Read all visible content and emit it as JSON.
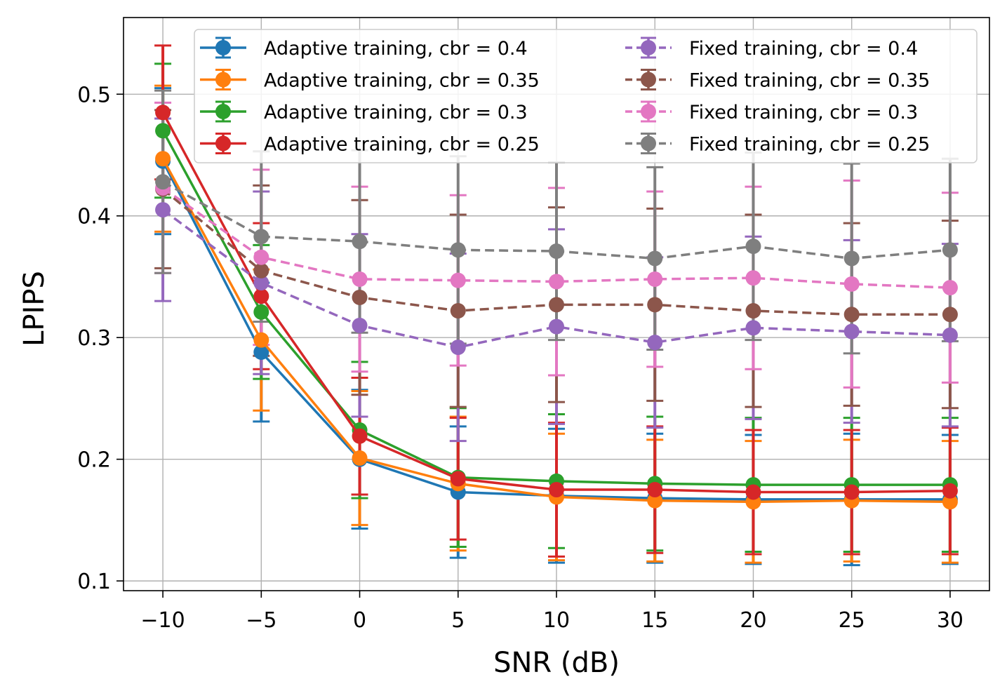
{
  "chart_data": {
    "type": "line",
    "title": "",
    "xlabel": "SNR (dB)",
    "ylabel": "LPIPS",
    "x": [
      -10,
      -5,
      0,
      5,
      10,
      15,
      20,
      25,
      30
    ],
    "x_tick_labels": [
      "−10",
      "−5",
      "0",
      "5",
      "10",
      "15",
      "20",
      "25",
      "30"
    ],
    "y_ticks": [
      0.1,
      0.2,
      0.3,
      0.4,
      0.5
    ],
    "y_tick_labels": [
      "0.1",
      "0.2",
      "0.3",
      "0.4",
      "0.5"
    ],
    "xlim": [
      -12,
      32
    ],
    "ylim": [
      0.092,
      0.563
    ],
    "grid": true,
    "legend_position": "top-right",
    "legend_columns": 2,
    "series": [
      {
        "name": "Adaptive training, cbr = 0.4",
        "color": "#1f77b4",
        "dashed": false,
        "values": [
          0.445,
          0.288,
          0.2,
          0.173,
          0.17,
          0.168,
          0.167,
          0.167,
          0.167
        ],
        "err": [
          0.06,
          0.057,
          0.057,
          0.054,
          0.055,
          0.053,
          0.053,
          0.054,
          0.053
        ]
      },
      {
        "name": "Adaptive training, cbr = 0.35",
        "color": "#ff7f0e",
        "dashed": false,
        "values": [
          0.447,
          0.298,
          0.201,
          0.18,
          0.169,
          0.166,
          0.165,
          0.166,
          0.165
        ],
        "err": [
          0.06,
          0.058,
          0.055,
          0.055,
          0.052,
          0.05,
          0.05,
          0.05,
          0.05
        ]
      },
      {
        "name": "Adaptive training, cbr = 0.3",
        "color": "#2ca02c",
        "dashed": false,
        "values": [
          0.47,
          0.321,
          0.224,
          0.185,
          0.182,
          0.18,
          0.179,
          0.179,
          0.179
        ],
        "err": [
          0.055,
          0.055,
          0.056,
          0.057,
          0.055,
          0.055,
          0.055,
          0.055,
          0.055
        ]
      },
      {
        "name": "Adaptive training, cbr = 0.25",
        "color": "#d62728",
        "dashed": false,
        "values": [
          0.485,
          0.334,
          0.219,
          0.184,
          0.175,
          0.175,
          0.173,
          0.173,
          0.174
        ],
        "err": [
          0.055,
          0.06,
          0.048,
          0.05,
          0.055,
          0.052,
          0.051,
          0.051,
          0.052
        ]
      },
      {
        "name": "Fixed training, cbr = 0.4",
        "color": "#9467bd",
        "dashed": true,
        "values": [
          0.405,
          0.345,
          0.31,
          0.292,
          0.309,
          0.296,
          0.308,
          0.305,
          0.302
        ],
        "err": [
          0.075,
          0.075,
          0.075,
          0.077,
          0.08,
          0.07,
          0.075,
          0.075,
          0.075
        ]
      },
      {
        "name": "Fixed training, cbr = 0.35",
        "color": "#8c564b",
        "dashed": true,
        "values": [
          0.422,
          0.355,
          0.333,
          0.322,
          0.327,
          0.327,
          0.322,
          0.319,
          0.319
        ],
        "err": [
          0.065,
          0.07,
          0.08,
          0.079,
          0.08,
          0.079,
          0.079,
          0.075,
          0.077
        ]
      },
      {
        "name": "Fixed training, cbr = 0.3",
        "color": "#e377c2",
        "dashed": true,
        "values": [
          0.423,
          0.366,
          0.348,
          0.347,
          0.346,
          0.348,
          0.349,
          0.344,
          0.341
        ],
        "err": [
          0.07,
          0.072,
          0.076,
          0.07,
          0.077,
          0.072,
          0.075,
          0.085,
          0.078
        ]
      },
      {
        "name": "Fixed training, cbr = 0.25",
        "color": "#7f7f7f",
        "dashed": true,
        "values": [
          0.428,
          0.383,
          0.379,
          0.372,
          0.371,
          0.365,
          0.375,
          0.365,
          0.372
        ],
        "err": [
          0.075,
          0.07,
          0.075,
          0.077,
          0.073,
          0.075,
          0.077,
          0.078,
          0.075
        ]
      }
    ]
  }
}
